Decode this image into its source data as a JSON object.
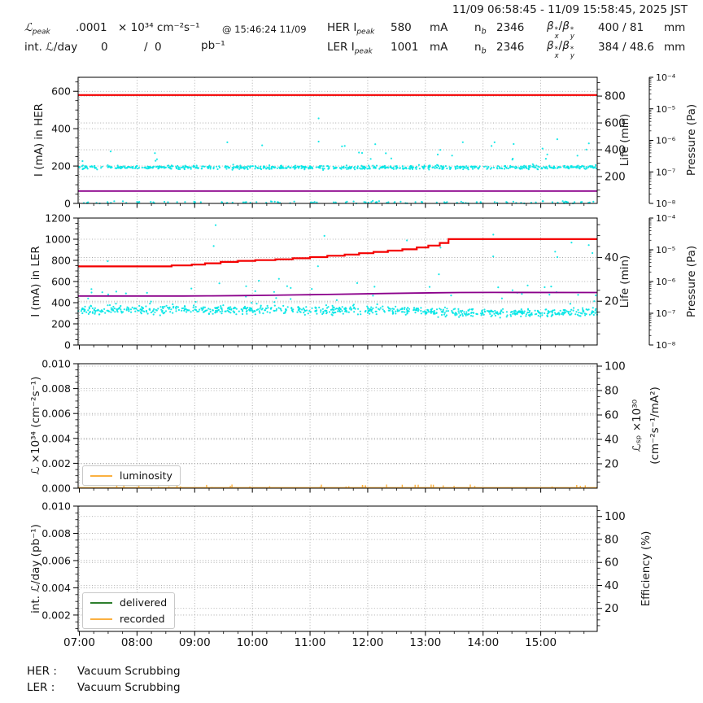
{
  "header": {
    "date_range": "11/09 06:58:45 - 11/09 15:58:45, 2025 JST",
    "lpeak": {
      "base": "ℒ",
      "sub": "peak",
      "value": ".0001",
      "units": "× 10³⁴ cm⁻²s⁻¹",
      "at": "@ 15:46:24 11/09"
    },
    "intl": {
      "label": "int. ℒ/day",
      "value": "0",
      "sep": "/",
      "value2": "0",
      "units": "pb⁻¹"
    },
    "beta": {
      "base": "β",
      "star": "*",
      "subx": "x",
      "suby": "y",
      "sep": "/"
    },
    "her": {
      "ring": "HER I",
      "sub": "peak",
      "value": "580",
      "unit": "mA",
      "nb_base": "n",
      "nb_sub": "b",
      "nb_value": "2346",
      "beta_value": "400 / 81",
      "beta_unit": "mm"
    },
    "ler": {
      "ring": "LER I",
      "sub": "peak",
      "value": "1001",
      "unit": "mA",
      "nb_base": "n",
      "nb_sub": "b",
      "nb_value": "2346",
      "beta_value": "384 / 48.6",
      "beta_unit": "mm"
    }
  },
  "axis_labels": {
    "p1_left": "I (mA) in HER",
    "p2_left": "I (mA) in LER",
    "p3_left": "ℒ ×10³⁴ (cm⁻²s⁻¹)",
    "p4_left": "int. ℒ/day (pb⁻¹)",
    "life": "Life (min)",
    "pressure": "Pressure (Pa)",
    "lsp_line1": "ℒₛₚ ×10³⁰",
    "lsp_line2": "(cm⁻²s⁻¹/mA²)",
    "efficiency": "Efficiency (%)"
  },
  "legends": {
    "luminosity": "luminosity",
    "delivered": "delivered",
    "recorded": "recorded"
  },
  "footer": {
    "her_label": "HER :",
    "her_status": "Vacuum Scrubbing",
    "ler_label": "LER :",
    "ler_status": "Vacuum Scrubbing"
  },
  "colors": {
    "red": "#f40000",
    "cyan": "#00e5e5",
    "purple": "#8b008b",
    "orange": "#fbb040",
    "green": "#2d7f2d",
    "grid": "#9a9a9a",
    "spine": "#000000"
  },
  "chart_data": [
    {
      "type": "line+scatter",
      "name": "HER beam current / lifetime / pressure",
      "xlim_hours": [
        6.979,
        15.979
      ],
      "x_minor_step_hours": 0.25,
      "show_xtick_labels": false,
      "xticks": [
        {
          "h": 7,
          "label": "07:00"
        },
        {
          "h": 8,
          "label": "08:00"
        },
        {
          "h": 9,
          "label": "09:00"
        },
        {
          "h": 10,
          "label": "10:00"
        },
        {
          "h": 11,
          "label": "11:00"
        },
        {
          "h": 12,
          "label": "12:00"
        },
        {
          "h": 13,
          "label": "13:00"
        },
        {
          "h": 14,
          "label": "14:00"
        },
        {
          "h": 15,
          "label": "15:00"
        }
      ],
      "ylim": [
        0,
        675
      ],
      "y_minor_step": 50,
      "yticks": [
        {
          "v": 0,
          "label": "0"
        },
        {
          "v": 200,
          "label": "200"
        },
        {
          "v": 400,
          "label": "400"
        },
        {
          "v": 600,
          "label": "600"
        }
      ],
      "right_axis": {
        "name": "Life (min)",
        "lim": [
          0,
          940
        ],
        "minor_step": 50,
        "ticks": [
          {
            "v": 200,
            "label": "200"
          },
          {
            "v": 400,
            "label": "400"
          },
          {
            "v": 600,
            "label": "600"
          },
          {
            "v": 800,
            "label": "800"
          }
        ]
      },
      "pressure_axis": {
        "name": "Pressure (Pa)",
        "labels": [
          "10⁻⁴",
          "10⁻⁵",
          "10⁻⁶",
          "10⁻⁷",
          "10⁻⁸"
        ]
      },
      "series": [
        {
          "name": "HER current (mA)",
          "type": "line",
          "color_key": "red",
          "width": 2.2,
          "points": [
            [
              6.979,
              580
            ],
            [
              15.979,
              580
            ]
          ]
        },
        {
          "name": "HER lifetime scatter",
          "type": "scatter",
          "color_key": "cyan",
          "n": 700,
          "seed": 11,
          "band": {
            "center": 193,
            "spread": 6
          },
          "outliers": [
            {
              "rate": 0.05,
              "min": 205,
              "max": 335
            },
            {
              "rate": 0.01,
              "min": 335,
              "max": 515
            }
          ]
        },
        {
          "name": "HER near-zero scatter",
          "type": "scatter",
          "color_key": "cyan",
          "n": 120,
          "seed": 23,
          "band": {
            "center": 6,
            "spread": 4
          },
          "clip": [
            0,
            16
          ]
        },
        {
          "name": "HER secondary trace",
          "type": "line",
          "color_key": "purple",
          "width": 1.8,
          "points": [
            [
              6.979,
              66
            ],
            [
              15.979,
              66
            ]
          ]
        }
      ]
    },
    {
      "type": "line+scatter",
      "name": "LER beam current / lifetime / pressure",
      "xlim_hours": [
        6.979,
        15.979
      ],
      "x_minor_step_hours": 0.25,
      "show_xtick_labels": false,
      "xticks": [
        {
          "h": 7,
          "label": "07:00"
        },
        {
          "h": 8,
          "label": "08:00"
        },
        {
          "h": 9,
          "label": "09:00"
        },
        {
          "h": 10,
          "label": "10:00"
        },
        {
          "h": 11,
          "label": "11:00"
        },
        {
          "h": 12,
          "label": "12:00"
        },
        {
          "h": 13,
          "label": "13:00"
        },
        {
          "h": 14,
          "label": "14:00"
        },
        {
          "h": 15,
          "label": "15:00"
        }
      ],
      "ylim": [
        0,
        1200
      ],
      "y_minor_step": 50,
      "yticks": [
        {
          "v": 0,
          "label": "0"
        },
        {
          "v": 200,
          "label": "200"
        },
        {
          "v": 400,
          "label": "400"
        },
        {
          "v": 600,
          "label": "600"
        },
        {
          "v": 800,
          "label": "800"
        },
        {
          "v": 1000,
          "label": "1000"
        },
        {
          "v": 1200,
          "label": "1200"
        }
      ],
      "right_axis": {
        "name": "Life (min)",
        "lim": [
          0,
          58
        ],
        "minor_step": 5,
        "ticks": [
          {
            "v": 20,
            "label": "20"
          },
          {
            "v": 40,
            "label": "40"
          }
        ]
      },
      "pressure_axis": {
        "name": "Pressure (Pa)",
        "labels": [
          "10⁻⁴",
          "10⁻⁵",
          "10⁻⁶",
          "10⁻⁷",
          "10⁻⁸"
        ]
      },
      "series": [
        {
          "name": "LER current ramp (mA)",
          "type": "line",
          "color_key": "red",
          "width": 2.2,
          "points": [
            [
              6.979,
              743
            ],
            [
              8.6,
              743
            ],
            [
              8.6,
              752
            ],
            [
              8.95,
              752
            ],
            [
              8.95,
              761
            ],
            [
              9.18,
              761
            ],
            [
              9.18,
              772
            ],
            [
              9.45,
              772
            ],
            [
              9.45,
              785
            ],
            [
              9.75,
              785
            ],
            [
              9.75,
              795
            ],
            [
              10.05,
              795
            ],
            [
              10.05,
              802
            ],
            [
              10.4,
              802
            ],
            [
              10.4,
              810
            ],
            [
              10.7,
              810
            ],
            [
              10.7,
              820
            ],
            [
              11.0,
              820
            ],
            [
              11.0,
              831
            ],
            [
              11.3,
              831
            ],
            [
              11.3,
              844
            ],
            [
              11.6,
              844
            ],
            [
              11.6,
              855
            ],
            [
              11.85,
              855
            ],
            [
              11.85,
              868
            ],
            [
              12.1,
              868
            ],
            [
              12.1,
              880
            ],
            [
              12.35,
              880
            ],
            [
              12.35,
              892
            ],
            [
              12.6,
              892
            ],
            [
              12.6,
              905
            ],
            [
              12.85,
              905
            ],
            [
              12.85,
              922
            ],
            [
              13.05,
              922
            ],
            [
              13.05,
              940
            ],
            [
              13.25,
              940
            ],
            [
              13.25,
              965
            ],
            [
              13.4,
              965
            ],
            [
              13.4,
              1001
            ],
            [
              15.979,
              1001
            ]
          ]
        },
        {
          "name": "LER lifetime scatter",
          "type": "scatter",
          "color_key": "cyan",
          "n": 850,
          "seed": 37,
          "band": {
            "center": 332,
            "spread": 24,
            "drift_after_hour": 13,
            "drift_delta": -25
          },
          "outliers": [
            {
              "rate": 0.06,
              "min": 380,
              "max": 560
            },
            {
              "rate": 0.018,
              "min": 560,
              "max": 1150
            }
          ]
        },
        {
          "name": "LER secondary trace",
          "type": "line",
          "color_key": "purple",
          "width": 1.8,
          "points": [
            [
              6.979,
              463
            ],
            [
              8.8,
              463
            ],
            [
              9.3,
              465
            ],
            [
              9.8,
              467
            ],
            [
              10.3,
              470
            ],
            [
              10.8,
              474
            ],
            [
              11.3,
              478
            ],
            [
              11.8,
              482
            ],
            [
              12.3,
              487
            ],
            [
              12.8,
              491
            ],
            [
              13.2,
              494
            ],
            [
              13.6,
              496
            ],
            [
              14.2,
              497
            ],
            [
              15.979,
              496
            ]
          ]
        }
      ]
    },
    {
      "type": "line",
      "name": "Luminosity",
      "xlim_hours": [
        6.979,
        15.979
      ],
      "x_minor_step_hours": 0.25,
      "show_xtick_labels": false,
      "xticks": [
        {
          "h": 7,
          "label": "07:00"
        },
        {
          "h": 8,
          "label": "08:00"
        },
        {
          "h": 9,
          "label": "09:00"
        },
        {
          "h": 10,
          "label": "10:00"
        },
        {
          "h": 11,
          "label": "11:00"
        },
        {
          "h": 12,
          "label": "12:00"
        },
        {
          "h": 13,
          "label": "13:00"
        },
        {
          "h": 14,
          "label": "14:00"
        },
        {
          "h": 15,
          "label": "15:00"
        }
      ],
      "ylim": [
        0,
        0.01
      ],
      "y_minor_step": 0.0005,
      "yticks": [
        {
          "v": 0,
          "label": "0.000"
        },
        {
          "v": 0.002,
          "label": "0.002"
        },
        {
          "v": 0.004,
          "label": "0.004"
        },
        {
          "v": 0.006,
          "label": "0.006"
        },
        {
          "v": 0.008,
          "label": "0.008"
        },
        {
          "v": 0.01,
          "label": "0.010"
        }
      ],
      "right_axis": {
        "name": "Lsp ×10^30",
        "lim": [
          0,
          102
        ],
        "minor_step": 5,
        "ticks": [
          {
            "v": 20,
            "label": "20"
          },
          {
            "v": 40,
            "label": "40"
          },
          {
            "v": 60,
            "label": "60"
          },
          {
            "v": 80,
            "label": "80"
          },
          {
            "v": 100,
            "label": "100"
          }
        ]
      },
      "series": [
        {
          "name": "luminosity",
          "type": "baseline-blips",
          "color_key": "orange",
          "width": 1.6,
          "baseline": 4e-05,
          "blips": {
            "n": 42,
            "seed": 7,
            "hmin": 6e-05,
            "hmax": 0.0003
          }
        }
      ]
    },
    {
      "type": "line",
      "name": "Integrated luminosity / efficiency",
      "xlim_hours": [
        6.979,
        15.979
      ],
      "x_minor_step_hours": 0.25,
      "show_xtick_labels": true,
      "xticks": [
        {
          "h": 7,
          "label": "07:00"
        },
        {
          "h": 8,
          "label": "08:00"
        },
        {
          "h": 9,
          "label": "09:00"
        },
        {
          "h": 10,
          "label": "10:00"
        },
        {
          "h": 11,
          "label": "11:00"
        },
        {
          "h": 12,
          "label": "12:00"
        },
        {
          "h": 13,
          "label": "13:00"
        },
        {
          "h": 14,
          "label": "14:00"
        },
        {
          "h": 15,
          "label": "15:00"
        }
      ],
      "ylim": [
        0.0008,
        0.01
      ],
      "y_minor_step": 0.0005,
      "yticks": [
        {
          "v": 0.002,
          "label": "0.002"
        },
        {
          "v": 0.004,
          "label": "0.004"
        },
        {
          "v": 0.006,
          "label": "0.006"
        },
        {
          "v": 0.008,
          "label": "0.008"
        },
        {
          "v": 0.01,
          "label": "0.010"
        }
      ],
      "right_axis": {
        "name": "Efficiency (%)",
        "lim": [
          0,
          109
        ],
        "minor_step": 5,
        "ticks": [
          {
            "v": 20,
            "label": "20"
          },
          {
            "v": 40,
            "label": "40"
          },
          {
            "v": 60,
            "label": "60"
          },
          {
            "v": 80,
            "label": "80"
          },
          {
            "v": 100,
            "label": "100"
          }
        ]
      },
      "series": []
    }
  ]
}
